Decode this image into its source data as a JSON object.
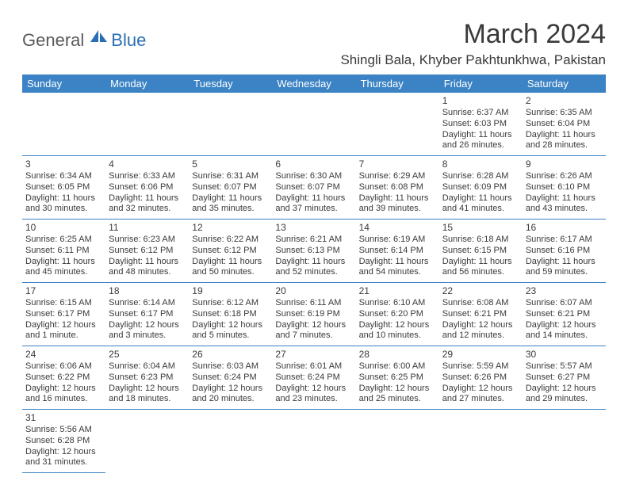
{
  "brand": {
    "part1": "General",
    "part2": "Blue"
  },
  "title": "March 2024",
  "subtitle": "Shingli Bala, Khyber Pakhtunkhwa, Pakistan",
  "colors": {
    "header_bg": "#3b83c4",
    "header_text": "#ffffff",
    "cell_border": "#3b83c4",
    "body_text": "#3a3a3a",
    "logo_gray": "#5a5a5a",
    "logo_blue": "#2a6fb5",
    "background": "#ffffff"
  },
  "typography": {
    "title_fontsize": 34,
    "subtitle_fontsize": 17,
    "header_fontsize": 13,
    "daynum_fontsize": 12,
    "cell_fontsize": 11
  },
  "columns": [
    "Sunday",
    "Monday",
    "Tuesday",
    "Wednesday",
    "Thursday",
    "Friday",
    "Saturday"
  ],
  "weeks": [
    [
      null,
      null,
      null,
      null,
      null,
      {
        "n": "1",
        "sr": "6:37 AM",
        "ss": "6:03 PM",
        "dl": "11 hours and 26 minutes."
      },
      {
        "n": "2",
        "sr": "6:35 AM",
        "ss": "6:04 PM",
        "dl": "11 hours and 28 minutes."
      }
    ],
    [
      {
        "n": "3",
        "sr": "6:34 AM",
        "ss": "6:05 PM",
        "dl": "11 hours and 30 minutes."
      },
      {
        "n": "4",
        "sr": "6:33 AM",
        "ss": "6:06 PM",
        "dl": "11 hours and 32 minutes."
      },
      {
        "n": "5",
        "sr": "6:31 AM",
        "ss": "6:07 PM",
        "dl": "11 hours and 35 minutes."
      },
      {
        "n": "6",
        "sr": "6:30 AM",
        "ss": "6:07 PM",
        "dl": "11 hours and 37 minutes."
      },
      {
        "n": "7",
        "sr": "6:29 AM",
        "ss": "6:08 PM",
        "dl": "11 hours and 39 minutes."
      },
      {
        "n": "8",
        "sr": "6:28 AM",
        "ss": "6:09 PM",
        "dl": "11 hours and 41 minutes."
      },
      {
        "n": "9",
        "sr": "6:26 AM",
        "ss": "6:10 PM",
        "dl": "11 hours and 43 minutes."
      }
    ],
    [
      {
        "n": "10",
        "sr": "6:25 AM",
        "ss": "6:11 PM",
        "dl": "11 hours and 45 minutes."
      },
      {
        "n": "11",
        "sr": "6:23 AM",
        "ss": "6:12 PM",
        "dl": "11 hours and 48 minutes."
      },
      {
        "n": "12",
        "sr": "6:22 AM",
        "ss": "6:12 PM",
        "dl": "11 hours and 50 minutes."
      },
      {
        "n": "13",
        "sr": "6:21 AM",
        "ss": "6:13 PM",
        "dl": "11 hours and 52 minutes."
      },
      {
        "n": "14",
        "sr": "6:19 AM",
        "ss": "6:14 PM",
        "dl": "11 hours and 54 minutes."
      },
      {
        "n": "15",
        "sr": "6:18 AM",
        "ss": "6:15 PM",
        "dl": "11 hours and 56 minutes."
      },
      {
        "n": "16",
        "sr": "6:17 AM",
        "ss": "6:16 PM",
        "dl": "11 hours and 59 minutes."
      }
    ],
    [
      {
        "n": "17",
        "sr": "6:15 AM",
        "ss": "6:17 PM",
        "dl": "12 hours and 1 minute."
      },
      {
        "n": "18",
        "sr": "6:14 AM",
        "ss": "6:17 PM",
        "dl": "12 hours and 3 minutes."
      },
      {
        "n": "19",
        "sr": "6:12 AM",
        "ss": "6:18 PM",
        "dl": "12 hours and 5 minutes."
      },
      {
        "n": "20",
        "sr": "6:11 AM",
        "ss": "6:19 PM",
        "dl": "12 hours and 7 minutes."
      },
      {
        "n": "21",
        "sr": "6:10 AM",
        "ss": "6:20 PM",
        "dl": "12 hours and 10 minutes."
      },
      {
        "n": "22",
        "sr": "6:08 AM",
        "ss": "6:21 PM",
        "dl": "12 hours and 12 minutes."
      },
      {
        "n": "23",
        "sr": "6:07 AM",
        "ss": "6:21 PM",
        "dl": "12 hours and 14 minutes."
      }
    ],
    [
      {
        "n": "24",
        "sr": "6:06 AM",
        "ss": "6:22 PM",
        "dl": "12 hours and 16 minutes."
      },
      {
        "n": "25",
        "sr": "6:04 AM",
        "ss": "6:23 PM",
        "dl": "12 hours and 18 minutes."
      },
      {
        "n": "26",
        "sr": "6:03 AM",
        "ss": "6:24 PM",
        "dl": "12 hours and 20 minutes."
      },
      {
        "n": "27",
        "sr": "6:01 AM",
        "ss": "6:24 PM",
        "dl": "12 hours and 23 minutes."
      },
      {
        "n": "28",
        "sr": "6:00 AM",
        "ss": "6:25 PM",
        "dl": "12 hours and 25 minutes."
      },
      {
        "n": "29",
        "sr": "5:59 AM",
        "ss": "6:26 PM",
        "dl": "12 hours and 27 minutes."
      },
      {
        "n": "30",
        "sr": "5:57 AM",
        "ss": "6:27 PM",
        "dl": "12 hours and 29 minutes."
      }
    ],
    [
      {
        "n": "31",
        "sr": "5:56 AM",
        "ss": "6:28 PM",
        "dl": "12 hours and 31 minutes."
      },
      null,
      null,
      null,
      null,
      null,
      null
    ]
  ],
  "labels": {
    "sunrise": "Sunrise:",
    "sunset": "Sunset:",
    "daylight": "Daylight:"
  }
}
